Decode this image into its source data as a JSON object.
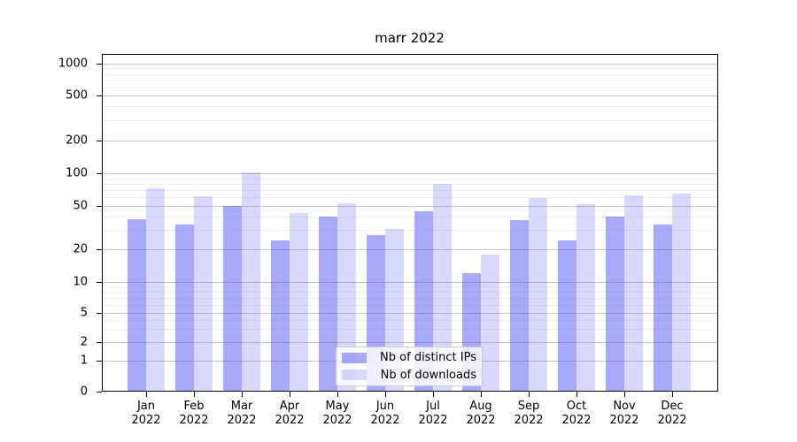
{
  "title": "marr 2022",
  "legend": {
    "items": [
      {
        "label": "Nb of distinct IPs"
      },
      {
        "label": "Nb of downloads"
      }
    ]
  },
  "chart_data": {
    "type": "bar",
    "title": "marr 2022",
    "categories": [
      "Jan 2022",
      "Feb 2022",
      "Mar 2022",
      "Apr 2022",
      "May 2022",
      "Jun 2022",
      "Jul 2022",
      "Aug 2022",
      "Sep 2022",
      "Oct 2022",
      "Nov 2022",
      "Dec 2022"
    ],
    "series": [
      {
        "name": "Nb of distinct IPs",
        "color": "rgba(80,80,242,0.49)",
        "values": [
          38,
          34,
          50,
          24,
          40,
          27,
          45,
          12,
          37,
          24,
          40,
          34
        ]
      },
      {
        "name": "Nb of downloads",
        "color": "rgba(80,80,242,0.22)",
        "values": [
          73,
          61,
          102,
          43,
          53,
          31,
          80,
          18,
          59,
          52,
          63,
          65
        ]
      }
    ],
    "ylabel": "",
    "xlabel": "",
    "yscale": "symlog",
    "ylim": [
      0,
      1000
    ],
    "yticks": [
      0,
      1,
      2,
      5,
      10,
      20,
      50,
      100,
      200,
      500,
      1000
    ],
    "minor_yticks": [
      3,
      4,
      6,
      7,
      8,
      9,
      30,
      40,
      60,
      70,
      80,
      90,
      300,
      400,
      600,
      700,
      800,
      900
    ],
    "grid": true,
    "legend_position": "lower center"
  }
}
